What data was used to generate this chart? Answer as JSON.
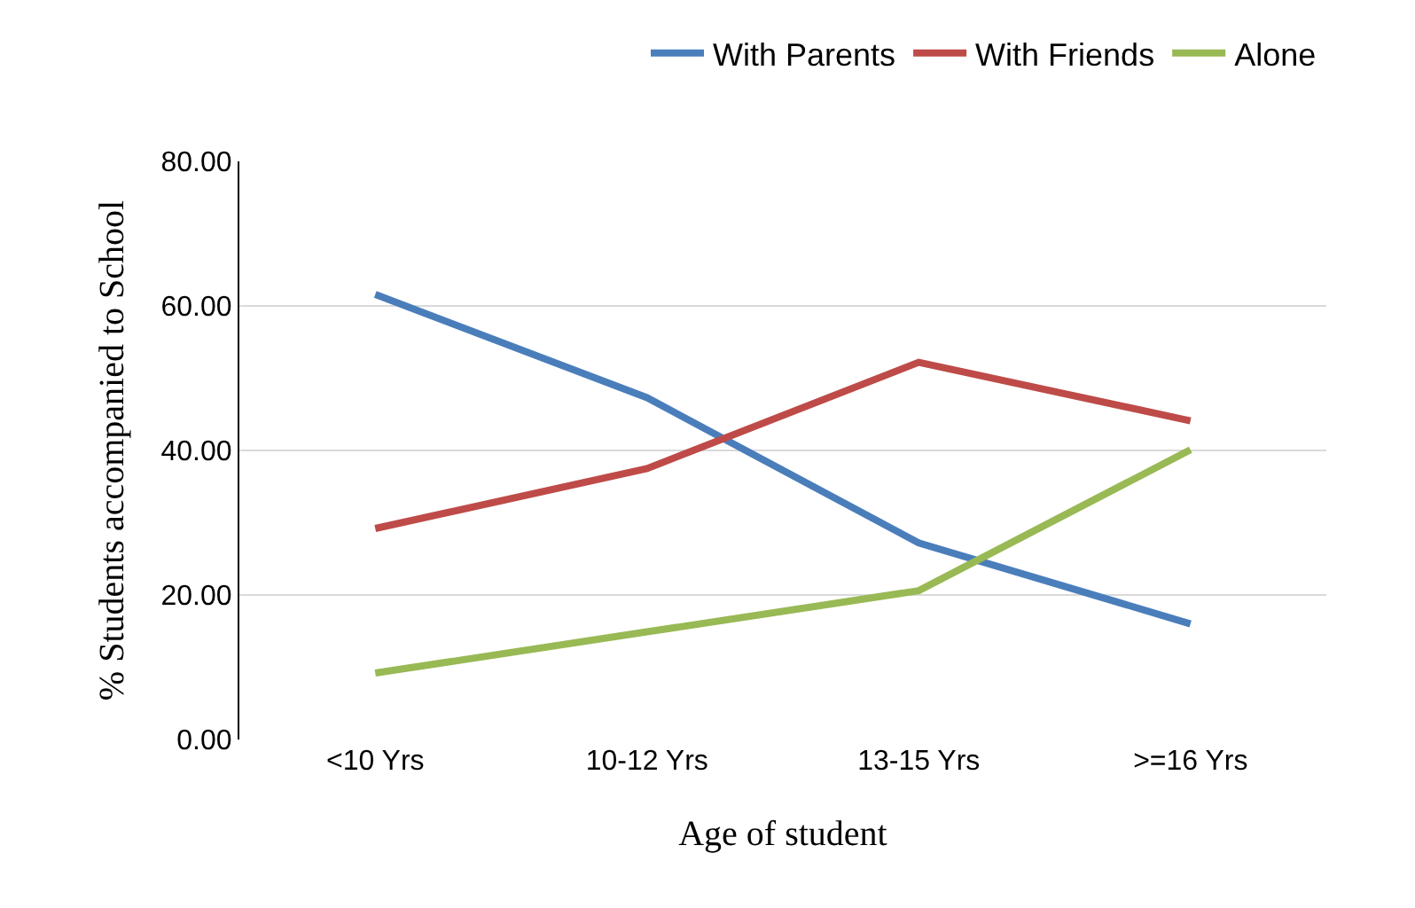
{
  "chart_data": {
    "type": "line",
    "xlabel": "Age of student",
    "ylabel": "% Students accompanied to School",
    "categories": [
      "<10 Yrs",
      "10-12 Yrs",
      "13-15 Yrs",
      ">=16 Yrs"
    ],
    "series": [
      {
        "name": "With Parents",
        "color": "#4a7ebb",
        "values": [
          61.6,
          47.3,
          27.2,
          16.0
        ]
      },
      {
        "name": "With Friends",
        "color": "#be4b48",
        "values": [
          29.2,
          37.5,
          52.2,
          44.1
        ]
      },
      {
        "name": "Alone",
        "color": "#98b954",
        "values": [
          9.2,
          14.9,
          20.6,
          40.1
        ]
      }
    ],
    "ylim": [
      0,
      80
    ],
    "yticks": [
      {
        "value": 0,
        "label": "0.00"
      },
      {
        "value": 20,
        "label": "20.00"
      },
      {
        "value": 40,
        "label": "40.00"
      },
      {
        "value": 60,
        "label": "60.00"
      },
      {
        "value": 80,
        "label": "80.00"
      }
    ],
    "grid": "y",
    "legend": "top",
    "marker": "none",
    "line_style": "solid"
  }
}
